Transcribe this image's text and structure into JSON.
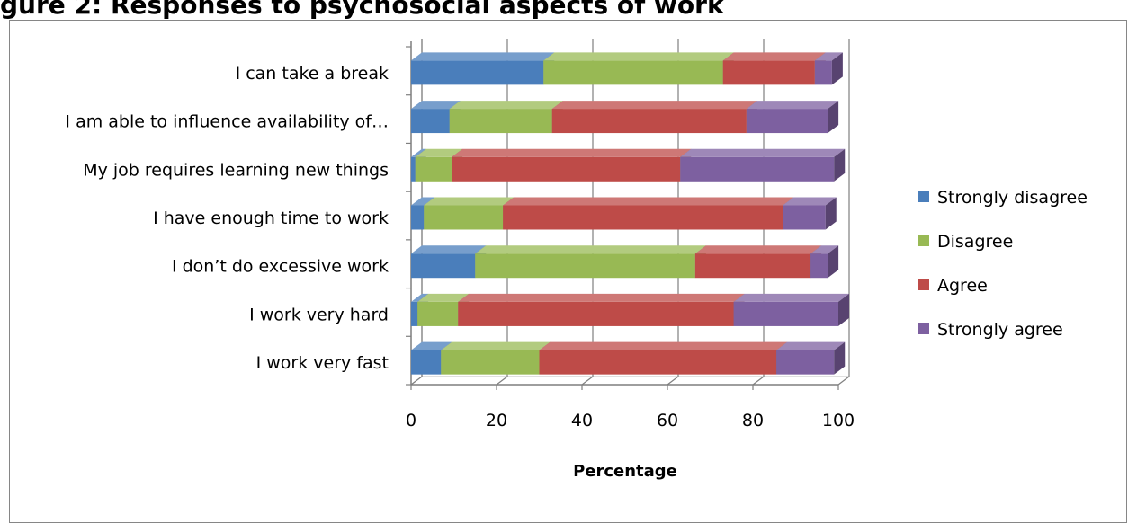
{
  "chart_data": {
    "type": "bar",
    "orientation": "horizontal",
    "stacked": true,
    "style": "3d",
    "title": "gure 2: Responses to psychosocial aspects of work",
    "xlabel": "Percentage",
    "ylabel": "",
    "xlim": [
      0,
      100
    ],
    "xticks": [
      0,
      20,
      40,
      60,
      80,
      100
    ],
    "grid": true,
    "legend_position": "right",
    "categories": [
      "I can take a break",
      "I am able to influence availability of…",
      "My job requires learning new things",
      "I have enough time to work",
      "I don’t do excessive work",
      "I work very hard",
      "I work very fast"
    ],
    "series": [
      {
        "name": "Strongly disagree",
        "color": "#4a7ebb",
        "values": [
          31,
          9,
          1,
          3,
          15,
          1.5,
          7
        ]
      },
      {
        "name": "Disagree",
        "color": "#98b954",
        "values": [
          42,
          24,
          8.5,
          18.5,
          51.5,
          9.5,
          23
        ]
      },
      {
        "name": "Agree",
        "color": "#be4b48",
        "values": [
          21.5,
          45.5,
          53.5,
          65.5,
          27,
          64.5,
          55.5
        ]
      },
      {
        "name": "Strongly agree",
        "color": "#7d60a0",
        "values": [
          4,
          19,
          36,
          10,
          4,
          24.5,
          13.5
        ]
      }
    ]
  }
}
